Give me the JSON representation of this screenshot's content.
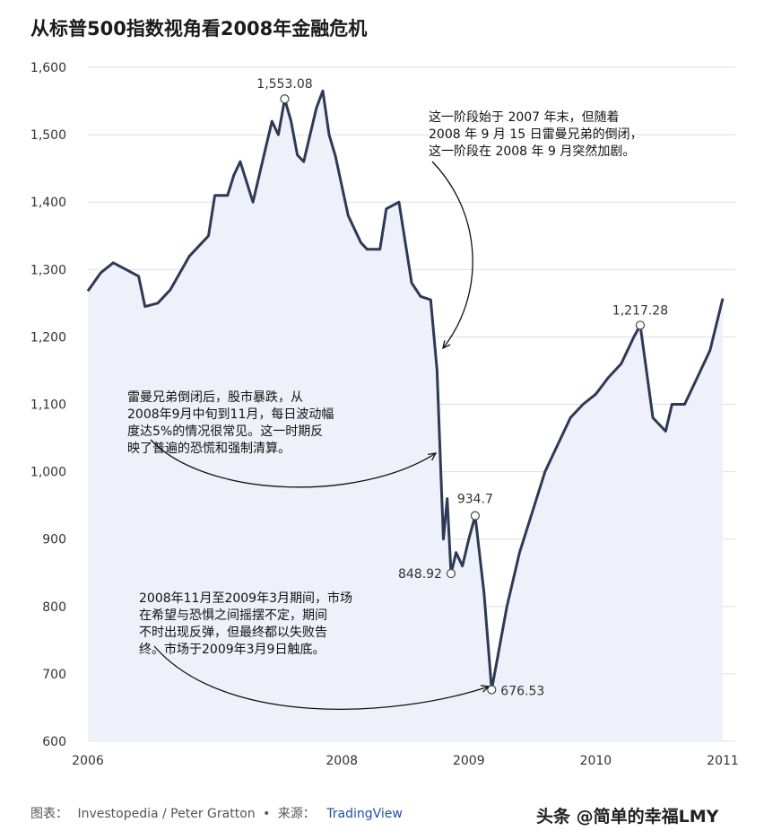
{
  "title": "从标普500指数视角看2008年金融危机",
  "chart_data": {
    "type": "line",
    "series": [
      {
        "x": [
          2006.0,
          2006.1,
          2006.2,
          2006.3,
          2006.4,
          2006.45,
          2006.55,
          2006.65,
          2006.8,
          2006.95,
          2007.0,
          2007.1,
          2007.15,
          2007.2,
          2007.3,
          2007.4,
          2007.45,
          2007.5,
          2007.55,
          2007.6,
          2007.65,
          2007.7,
          2007.8,
          2007.85,
          2007.9,
          2007.95,
          2008.05,
          2008.15,
          2008.2,
          2008.3,
          2008.35,
          2008.45,
          2008.55,
          2008.62,
          2008.7,
          2008.75,
          2008.78,
          2008.8,
          2008.83,
          2008.86,
          2008.9,
          2008.95,
          2009.0,
          2009.05,
          2009.12,
          2009.18,
          2009.3,
          2009.4,
          2009.5,
          2009.6,
          2009.7,
          2009.8,
          2009.9,
          2010.0,
          2010.1,
          2010.2,
          2010.3,
          2010.35,
          2010.45,
          2010.55,
          2010.6,
          2010.7,
          2010.8,
          2010.9,
          2011.0
        ],
        "y": [
          1268,
          1295,
          1310,
          1300,
          1290,
          1245,
          1250,
          1270,
          1320,
          1350,
          1410,
          1410,
          1440,
          1460,
          1400,
          1480,
          1520,
          1500,
          1553,
          1520,
          1470,
          1460,
          1540,
          1565,
          1500,
          1468,
          1380,
          1340,
          1330,
          1330,
          1390,
          1400,
          1280,
          1260,
          1255,
          1150,
          1000,
          900,
          960,
          848.92,
          880,
          860,
          900,
          934.7,
          820,
          676.53,
          800,
          880,
          940,
          1000,
          1040,
          1080,
          1100,
          1115,
          1140,
          1160,
          1200,
          1217.28,
          1080,
          1060,
          1100,
          1100,
          1140,
          1180,
          1257
        ]
      }
    ],
    "xticks": [
      "2006",
      "2008",
      "2009",
      "2010",
      "2011"
    ],
    "yticks": [
      "600",
      "700",
      "800",
      "900",
      "1,000",
      "1,100",
      "1,200",
      "1,300",
      "1,400",
      "1,500",
      "1,600"
    ],
    "xlim": [
      2006,
      2011
    ],
    "ylim": [
      600,
      1600
    ],
    "grid": true,
    "color": "#2e3a55",
    "fill": "#eef0fa",
    "data_labels": [
      {
        "x": 2007.55,
        "y": 1553.08,
        "text": "1,553.08"
      },
      {
        "x": 2008.86,
        "y": 848.92,
        "text": "848.92"
      },
      {
        "x": 2009.05,
        "y": 934.7,
        "text": "934.7"
      },
      {
        "x": 2009.18,
        "y": 676.53,
        "text": "676.53"
      },
      {
        "x": 2010.35,
        "y": 1217.28,
        "text": "1,217.28"
      }
    ]
  },
  "annotations": {
    "top": [
      "这一阶段始于 2007 年末，但随着",
      "2008 年 9 月 15 日雷曼兄弟的倒闭，",
      "这一阶段在 2008 年 9 月突然加剧。"
    ],
    "middle": [
      "雷曼兄弟倒闭后，股市暴跌，从",
      "2008年9月中旬到11月，每日波动幅",
      "度达5%的情况很常见。这一时期反",
      "映了普遍的恐慌和强制清算。"
    ],
    "bottom": [
      "2008年11月至2009年3月期间，市场",
      "在希望与恐惧之间摇摆不定，期间",
      "不时出现反弹，但最终都以失败告",
      "终。市场于2009年3月9日触底。"
    ]
  },
  "footer": {
    "chart_label": "图表：",
    "author": "Investopedia / Peter Gratton",
    "dot": "•",
    "source_label": "来源：",
    "source": "TradingView"
  },
  "watermark": "头条 @简单的幸福LMY"
}
